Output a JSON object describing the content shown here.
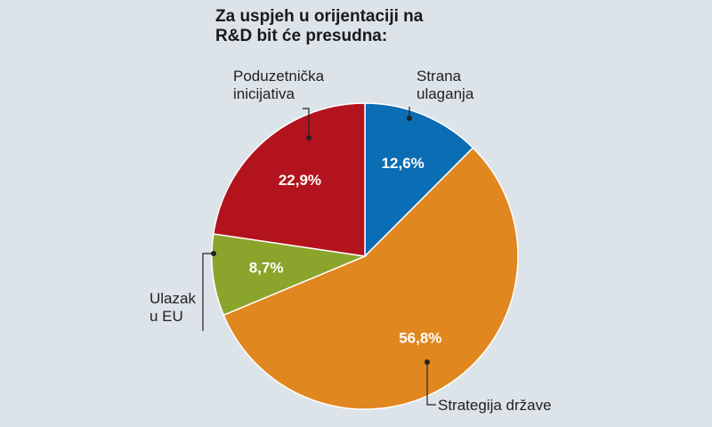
{
  "chart_data": {
    "type": "pie",
    "title": "Za uspjeh u orijentaciji na R&D bit će presudna:",
    "categories": [
      "Strana ulaganja",
      "Strategija države",
      "Ulazak u EU",
      "Poduzetnička inicijativa"
    ],
    "values": [
      12.6,
      56.8,
      8.7,
      22.9
    ],
    "value_labels": [
      "12,6%",
      "56,8%",
      "8,7%",
      "22,9%"
    ],
    "colors": [
      "#0b6db3",
      "#e0871f",
      "#8ba42b",
      "#b3131c"
    ]
  }
}
